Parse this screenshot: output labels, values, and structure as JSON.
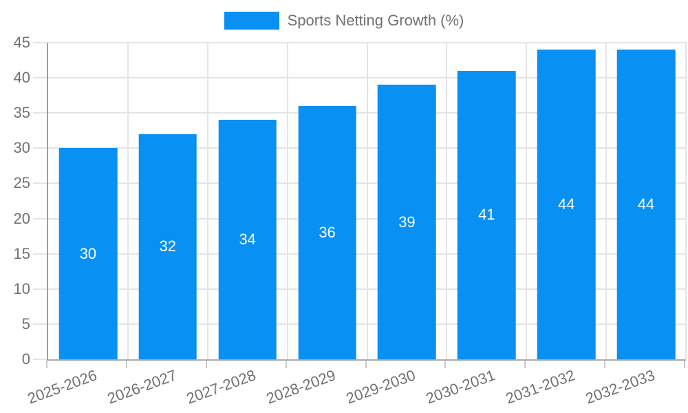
{
  "chart_data": {
    "type": "bar",
    "title": "",
    "legend": {
      "label": "Sports Netting Growth (%)",
      "position": "top"
    },
    "categories": [
      "2025-2026",
      "2026-2027",
      "2027-2028",
      "2028-2029",
      "2029-2030",
      "2030-2031",
      "2031-2032",
      "2032-2033"
    ],
    "values": [
      30,
      32,
      34,
      36,
      39,
      41,
      44,
      44
    ],
    "value_labels": [
      "30",
      "32",
      "34",
      "36",
      "39",
      "41",
      "44",
      "44"
    ],
    "ylim": [
      0,
      45
    ],
    "ytick_step": 5,
    "ytick_labels": [
      "0",
      "5",
      "10",
      "15",
      "20",
      "25",
      "30",
      "35",
      "40",
      "45"
    ],
    "grid": true,
    "xlabel": "",
    "ylabel": "",
    "colors": {
      "bar": "#0890F2",
      "value_label": "#FFFFFF",
      "axis_text": "#717171",
      "gridline": "#E4E4E4",
      "axis_line": "#9E9E9E",
      "tick": "#C9C9C9"
    }
  }
}
